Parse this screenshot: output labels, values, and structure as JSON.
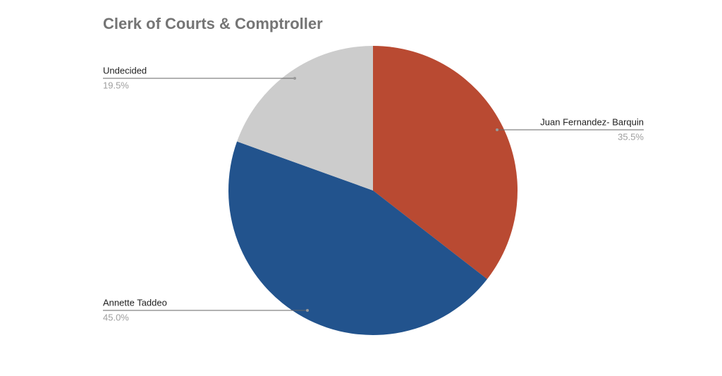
{
  "chart_data": {
    "type": "pie",
    "title": "Clerk of Courts & Comptroller",
    "categories": [
      "Juan Fernandez- Barquin",
      "Annette Taddeo",
      "Undecided"
    ],
    "values": [
      35.5,
      45.0,
      19.5
    ],
    "value_labels": [
      "35.5%",
      "45.0%",
      "19.5%"
    ],
    "colors": [
      "#b94a32",
      "#22538d",
      "#cccccc"
    ]
  }
}
